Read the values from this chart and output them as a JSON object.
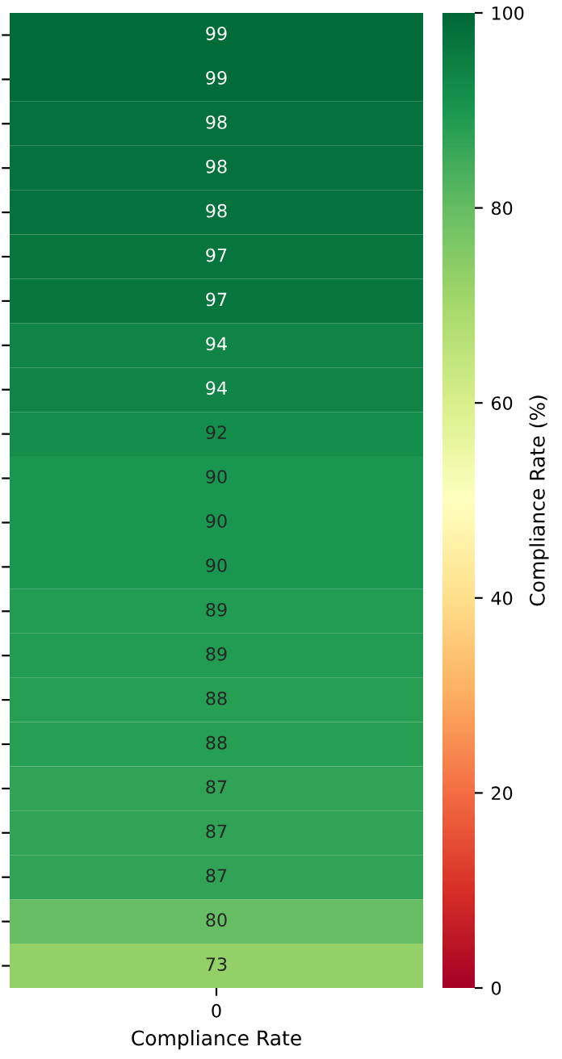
{
  "chart_data": {
    "type": "heatmap",
    "xlabel": "Compliance Rate",
    "clabel": "Compliance Rate (%)",
    "categories": [
      "0"
    ],
    "y_categories": [
      null,
      null,
      null,
      null,
      null,
      null,
      null,
      null,
      null,
      null,
      null,
      null,
      null,
      null,
      null,
      null,
      null,
      null,
      null,
      null,
      null,
      null
    ],
    "cells": [
      [
        99
      ],
      [
        99
      ],
      [
        98
      ],
      [
        98
      ],
      [
        98
      ],
      [
        97
      ],
      [
        97
      ],
      [
        94
      ],
      [
        94
      ],
      [
        92
      ],
      [
        90
      ],
      [
        90
      ],
      [
        90
      ],
      [
        89
      ],
      [
        89
      ],
      [
        88
      ],
      [
        88
      ],
      [
        87
      ],
      [
        87
      ],
      [
        87
      ],
      [
        80
      ],
      [
        73
      ]
    ],
    "data_labels": true,
    "tick_labels": "x",
    "clim": [
      0,
      100
    ],
    "cticks": [
      0,
      20,
      40,
      60,
      80,
      100
    ]
  }
}
